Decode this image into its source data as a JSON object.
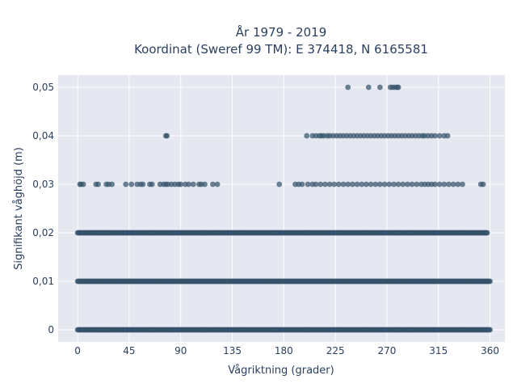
{
  "chart_data": {
    "type": "scatter",
    "title": [
      "År 1979 - 2019",
      "Koordinat (Sweref 99 TM): E 374418, N 6165581"
    ],
    "xlabel": "Vågriktning (grader)",
    "ylabel": "Signifikant våghöjd (m)",
    "xlim": [
      -17,
      373
    ],
    "ylim": [
      -0.0025,
      0.0525
    ],
    "xticks": [
      0,
      45,
      90,
      135,
      180,
      225,
      270,
      315,
      360
    ],
    "xtick_labels": [
      "0",
      "45",
      "90",
      "135",
      "180",
      "225",
      "270",
      "315",
      "360"
    ],
    "yticks": [
      0,
      0.01,
      0.02,
      0.03,
      0.04,
      0.05
    ],
    "ytick_labels": [
      "0",
      "0,01",
      "0,02",
      "0,03",
      "0,04",
      "0,05"
    ],
    "grid": true,
    "marker_color": "#34536b",
    "plot_background": "#e5e8f0",
    "series": [
      {
        "points": [
          {
            "y": 0.05,
            "x": [
              236,
              254,
              264,
              273,
              275,
              277,
              279,
              280
            ]
          },
          {
            "y": 0.04,
            "x": [
              77,
              78,
              200,
              205,
              208,
              211,
              213,
              215,
              218,
              220,
              223,
              226,
              229,
              232,
              235,
              238,
              241,
              244,
              247,
              250,
              253,
              256,
              259,
              262,
              265,
              268,
              271,
              274,
              277,
              280,
              283,
              286,
              289,
              292,
              295,
              298,
              301,
              303,
              306,
              309,
              312,
              316,
              320,
              323
            ]
          },
          {
            "y": 0.03,
            "x": [
              2,
              3,
              5,
              16,
              18,
              25,
              27,
              30,
              42,
              47,
              52,
              55,
              57,
              63,
              65,
              72,
              75,
              77,
              79,
              82,
              85,
              88,
              90,
              94,
              97,
              101,
              106,
              108,
              111,
              118,
              122,
              176,
              190,
              193,
              196,
              201,
              205,
              208,
              212,
              216,
              220,
              224,
              228,
              232,
              236,
              240,
              244,
              248,
              252,
              256,
              260,
              264,
              268,
              272,
              276,
              280,
              284,
              288,
              292,
              296,
              300,
              303,
              306,
              309,
              312,
              316,
              320,
              324,
              328,
              332,
              336,
              352,
              354
            ]
          },
          {
            "y": 0.02,
            "x_range": [
              0,
              358
            ]
          },
          {
            "y": 0.01,
            "x_range": [
              0,
              360
            ]
          },
          {
            "y": 0.0,
            "x_range": [
              0,
              360
            ]
          }
        ]
      }
    ]
  }
}
